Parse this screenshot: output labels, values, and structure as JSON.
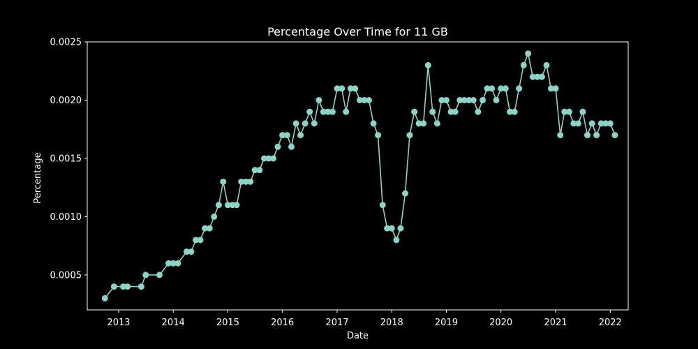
{
  "chart_data": {
    "type": "line",
    "title": "Percentage Over Time for 11 GB",
    "xlabel": "Date",
    "ylabel": "Percentage",
    "xlim": [
      "2012-06-05",
      "2022-05-01"
    ],
    "ylim": [
      0.0002,
      0.0025
    ],
    "x_ticks": [
      "2013",
      "2014",
      "2015",
      "2016",
      "2017",
      "2018",
      "2019",
      "2020",
      "2021",
      "2022"
    ],
    "y_ticks": [
      "0.0005",
      "0.0010",
      "0.0015",
      "0.0020",
      "0.0025"
    ],
    "grid": false,
    "legend": false,
    "line_color": "#8dd3c7",
    "background": "#000000",
    "foreground": "#ffffff",
    "series": [
      {
        "points": [
          [
            "2012-10-01",
            0.0003
          ],
          [
            "2012-12-01",
            0.0004
          ],
          [
            "2013-02-01",
            0.0004
          ],
          [
            "2013-03-01",
            0.0004
          ],
          [
            "2013-06-01",
            0.0004
          ],
          [
            "2013-07-01",
            0.0005
          ],
          [
            "2013-10-01",
            0.0005
          ],
          [
            "2013-12-01",
            0.0006
          ],
          [
            "2014-01-01",
            0.0006
          ],
          [
            "2014-02-01",
            0.0006
          ],
          [
            "2014-04-01",
            0.0007
          ],
          [
            "2014-05-01",
            0.0007
          ],
          [
            "2014-06-01",
            0.0008
          ],
          [
            "2014-07-01",
            0.0008
          ],
          [
            "2014-08-01",
            0.0009
          ],
          [
            "2014-09-01",
            0.0009
          ],
          [
            "2014-10-01",
            0.001
          ],
          [
            "2014-11-01",
            0.0011
          ],
          [
            "2014-12-01",
            0.0013
          ],
          [
            "2015-01-01",
            0.0011
          ],
          [
            "2015-02-01",
            0.0011
          ],
          [
            "2015-03-01",
            0.0011
          ],
          [
            "2015-04-01",
            0.0013
          ],
          [
            "2015-05-01",
            0.0013
          ],
          [
            "2015-06-01",
            0.0013
          ],
          [
            "2015-07-01",
            0.0014
          ],
          [
            "2015-08-01",
            0.0014
          ],
          [
            "2015-09-01",
            0.0015
          ],
          [
            "2015-10-01",
            0.0015
          ],
          [
            "2015-11-01",
            0.0015
          ],
          [
            "2015-12-01",
            0.0016
          ],
          [
            "2016-01-01",
            0.0017
          ],
          [
            "2016-02-01",
            0.0017
          ],
          [
            "2016-03-01",
            0.0016
          ],
          [
            "2016-04-01",
            0.0018
          ],
          [
            "2016-05-01",
            0.0017
          ],
          [
            "2016-06-01",
            0.0018
          ],
          [
            "2016-07-01",
            0.0019
          ],
          [
            "2016-08-01",
            0.0018
          ],
          [
            "2016-09-01",
            0.002
          ],
          [
            "2016-10-01",
            0.0019
          ],
          [
            "2016-11-01",
            0.0019
          ],
          [
            "2016-12-01",
            0.0019
          ],
          [
            "2017-01-01",
            0.0021
          ],
          [
            "2017-02-01",
            0.0021
          ],
          [
            "2017-03-01",
            0.0019
          ],
          [
            "2017-04-01",
            0.0021
          ],
          [
            "2017-05-01",
            0.0021
          ],
          [
            "2017-06-01",
            0.002
          ],
          [
            "2017-07-01",
            0.002
          ],
          [
            "2017-08-01",
            0.002
          ],
          [
            "2017-09-01",
            0.0018
          ],
          [
            "2017-10-01",
            0.0017
          ],
          [
            "2017-11-01",
            0.0011
          ],
          [
            "2017-12-01",
            0.0009
          ],
          [
            "2018-01-01",
            0.0009
          ],
          [
            "2018-02-01",
            0.0008
          ],
          [
            "2018-03-01",
            0.0009
          ],
          [
            "2018-04-01",
            0.0012
          ],
          [
            "2018-05-01",
            0.0017
          ],
          [
            "2018-06-01",
            0.0019
          ],
          [
            "2018-07-01",
            0.0018
          ],
          [
            "2018-08-01",
            0.0018
          ],
          [
            "2018-09-01",
            0.0023
          ],
          [
            "2018-10-01",
            0.0019
          ],
          [
            "2018-11-01",
            0.0018
          ],
          [
            "2018-12-01",
            0.002
          ],
          [
            "2019-01-01",
            0.002
          ],
          [
            "2019-02-01",
            0.0019
          ],
          [
            "2019-03-01",
            0.0019
          ],
          [
            "2019-04-01",
            0.002
          ],
          [
            "2019-05-01",
            0.002
          ],
          [
            "2019-06-01",
            0.002
          ],
          [
            "2019-07-01",
            0.002
          ],
          [
            "2019-08-01",
            0.0019
          ],
          [
            "2019-09-01",
            0.002
          ],
          [
            "2019-10-01",
            0.0021
          ],
          [
            "2019-11-01",
            0.0021
          ],
          [
            "2019-12-01",
            0.002
          ],
          [
            "2020-01-01",
            0.0021
          ],
          [
            "2020-02-01",
            0.0021
          ],
          [
            "2020-03-01",
            0.0019
          ],
          [
            "2020-04-01",
            0.0019
          ],
          [
            "2020-05-01",
            0.0021
          ],
          [
            "2020-06-01",
            0.0023
          ],
          [
            "2020-07-01",
            0.0024
          ],
          [
            "2020-08-01",
            0.0022
          ],
          [
            "2020-09-01",
            0.0022
          ],
          [
            "2020-10-01",
            0.0022
          ],
          [
            "2020-11-01",
            0.0023
          ],
          [
            "2020-12-01",
            0.0021
          ],
          [
            "2021-01-01",
            0.0021
          ],
          [
            "2021-02-01",
            0.0017
          ],
          [
            "2021-03-01",
            0.0019
          ],
          [
            "2021-04-01",
            0.0019
          ],
          [
            "2021-05-01",
            0.0018
          ],
          [
            "2021-06-01",
            0.0018
          ],
          [
            "2021-07-01",
            0.0019
          ],
          [
            "2021-08-01",
            0.0017
          ],
          [
            "2021-09-01",
            0.0018
          ],
          [
            "2021-10-01",
            0.0017
          ],
          [
            "2021-11-01",
            0.0018
          ],
          [
            "2021-12-01",
            0.0018
          ],
          [
            "2022-01-01",
            0.0018
          ],
          [
            "2022-02-01",
            0.0017
          ]
        ]
      }
    ]
  }
}
